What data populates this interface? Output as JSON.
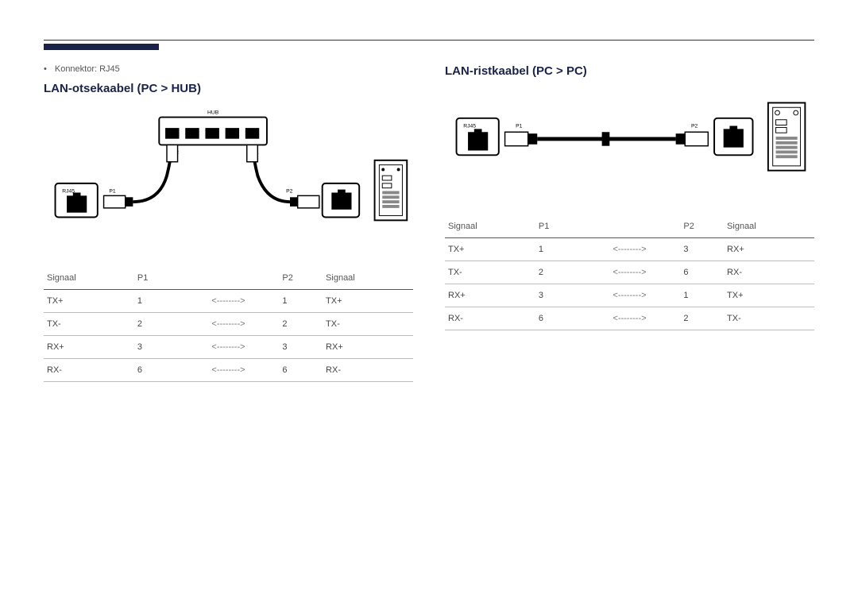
{
  "page": {
    "accent_color": "#1a2347",
    "rule_color": "#333333",
    "background": "#ffffff"
  },
  "left": {
    "connector_note": "Konnektor: RJ45",
    "title": "LAN-otsekaabel (PC > HUB)",
    "diagram": {
      "hub_label": "HUB",
      "rj45_label": "RJ45",
      "p1_label": "P1",
      "p2_label": "P2"
    },
    "table": {
      "headers": [
        "Signaal",
        "P1",
        "",
        "P2",
        "Signaal"
      ],
      "rows": [
        [
          "TX+",
          "1",
          "<-------->",
          "1",
          "TX+"
        ],
        [
          "TX-",
          "2",
          "<-------->",
          "2",
          "TX-"
        ],
        [
          "RX+",
          "3",
          "<-------->",
          "3",
          "RX+"
        ],
        [
          "RX-",
          "6",
          "<-------->",
          "6",
          "RX-"
        ]
      ]
    }
  },
  "right": {
    "title": "LAN-ristkaabel (PC > PC)",
    "diagram": {
      "rj45_label": "RJ45",
      "p1_label": "P1",
      "p2_label": "P2"
    },
    "table": {
      "headers": [
        "Signaal",
        "P1",
        "",
        "P2",
        "Signaal"
      ],
      "rows": [
        [
          "TX+",
          "1",
          "<-------->",
          "3",
          "RX+"
        ],
        [
          "TX-",
          "2",
          "<-------->",
          "6",
          "RX-"
        ],
        [
          "RX+",
          "3",
          "<-------->",
          "1",
          "TX+"
        ],
        [
          "RX-",
          "6",
          "<-------->",
          "2",
          "TX-"
        ]
      ]
    }
  }
}
